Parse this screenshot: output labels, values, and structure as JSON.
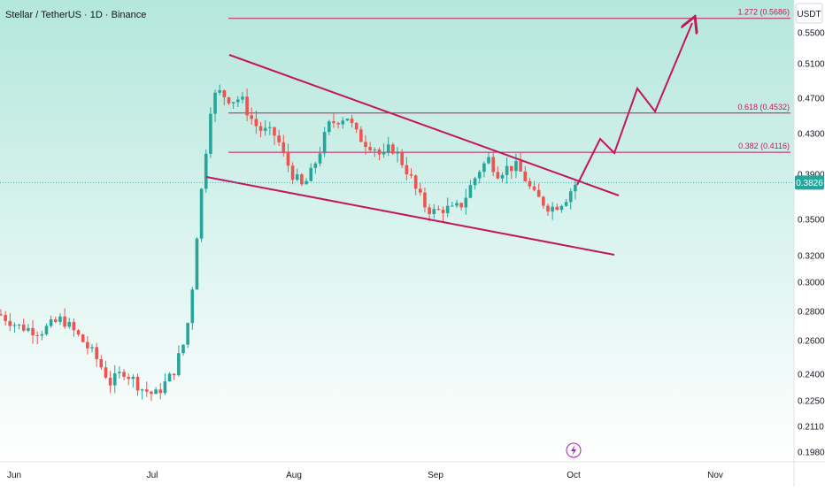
{
  "chart_data": {
    "type": "candlestick",
    "title": "Stellar / TetherUS · 1D · Binance",
    "currency": "USDT",
    "last_price": "0.3826",
    "y_ticks": [
      "0.5500",
      "0.5100",
      "0.4700",
      "0.4300",
      "0.3900",
      "0.3500",
      "0.3200",
      "0.3000",
      "0.2800",
      "0.2600",
      "0.2400",
      "0.2250",
      "0.2110",
      "0.1980"
    ],
    "x_ticks": [
      "Jun",
      "Jul",
      "Aug",
      "Sep",
      "Oct",
      "Nov"
    ],
    "fib_levels": [
      {
        "label": "1.272 (0.5686)",
        "value": 0.5686
      },
      {
        "label": "0.618 (0.4532)",
        "value": 0.4532
      },
      {
        "label": "0.382 (0.4116)",
        "value": 0.4116
      }
    ],
    "colors": {
      "up": "#26a69a",
      "down": "#ef5350",
      "drawing": "#c2185b",
      "bg_top": "#b4e7dc",
      "bg_bottom": "#ffffff",
      "price_tag": "#26a69a"
    },
    "grid": false
  }
}
